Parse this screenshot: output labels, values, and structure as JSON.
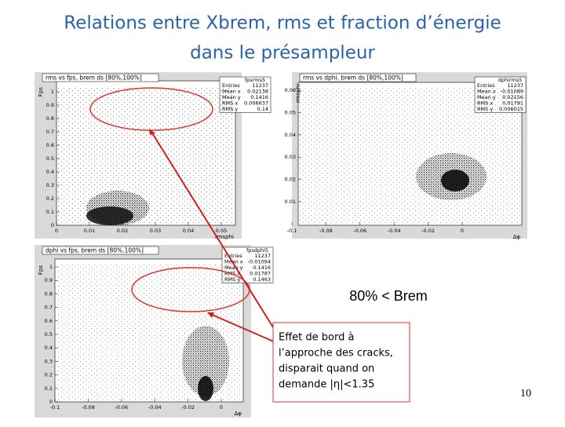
{
  "header": {
    "title": [
      "Relations entre Xbrem, rms et fraction d’énergie",
      "dans le présampleur"
    ]
  },
  "panels": [
    {
      "title": "rms vs fps, brem ds [80%,100%]",
      "stats_name": "fpsrms5",
      "stats": [
        [
          "Entries",
          "11237"
        ],
        [
          "Mean x",
          "0.02138"
        ],
        [
          "Mean y",
          "0.1416"
        ],
        [
          "RMS x",
          "0.006637"
        ],
        [
          "RMS y",
          "0.14"
        ]
      ],
      "yticks": [
        "0",
        "0.1",
        "0.2",
        "0.3",
        "0.4",
        "0.5",
        "0.6",
        "0.7",
        "0.8",
        "0.9",
        "1"
      ],
      "xticks": [
        "0",
        "0.01",
        "0.02",
        "0.03",
        "0.04",
        "0.05"
      ],
      "xlabel": "rmsphi",
      "ylabel": "Fps"
    },
    {
      "title": "rms vs dphi, brem ds [80%,100%]",
      "stats_name": "dphirms5",
      "stats": [
        [
          "Entries",
          "11237"
        ],
        [
          "Mean x",
          "-0.01089"
        ],
        [
          "Mean y",
          "0.02156"
        ],
        [
          "RMS x",
          "0.01791"
        ],
        [
          "RMS y",
          "0.006015"
        ]
      ],
      "yticks": [
        "0.01",
        "0.02",
        "0.03",
        "0.04",
        "0.05",
        "0.06"
      ],
      "xticks": [
        "-0.1",
        "-0.08",
        "-0.06",
        "-0.04",
        "-0.02",
        "0"
      ],
      "xlabel": "Δφ",
      "ylabel": "rmsphi"
    },
    {
      "title": "dphi vs fps, brem ds [80%,100%]",
      "stats_name": "fpsdphi5",
      "stats": [
        [
          "Entries",
          "11237"
        ],
        [
          "Mean x",
          "-0.01094"
        ],
        [
          "Mean y",
          "0.1416"
        ],
        [
          "RMS x",
          "0.01787"
        ],
        [
          "RMS y",
          "0.1463"
        ]
      ],
      "yticks": [
        "0",
        "0.1",
        "0.2",
        "0.3",
        "0.4",
        "0.5",
        "0.6",
        "0.7",
        "0.8",
        "0.9",
        "1"
      ],
      "xticks": [
        "-0.1",
        "-0.08",
        "-0.06",
        "-0.04",
        "-0.02",
        "0"
      ],
      "xlabel": "Δφ",
      "ylabel": "Fps"
    }
  ],
  "annotation": "80% < Brem",
  "note": [
    "Effet de bord à",
    "l’approche des cracks,",
    "disparait quand on",
    "demande |η|<1.35"
  ],
  "page_number": "10"
}
